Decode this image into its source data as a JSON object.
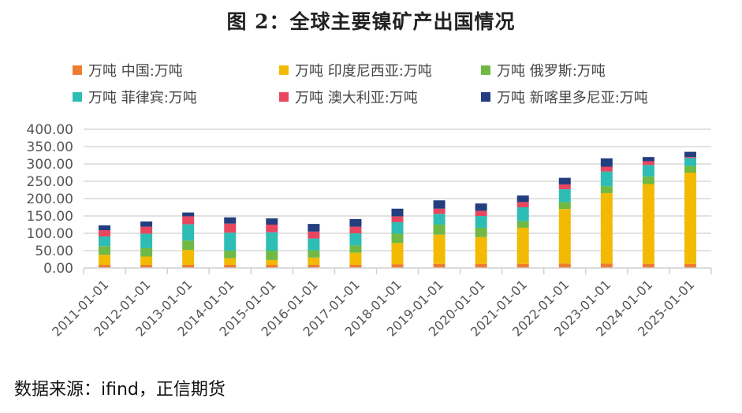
{
  "title": "图 2：全球主要镍矿产出国情况",
  "source": "数据来源：ifind，正信期货",
  "chart_data": {
    "type": "bar",
    "stacked": true,
    "title": "图 2：全球主要镍矿产出国情况",
    "xlabel": "",
    "ylabel": "",
    "ylim": [
      0,
      400
    ],
    "yticks": [
      0,
      50,
      100,
      150,
      200,
      250,
      300,
      350,
      400
    ],
    "ytick_labels": [
      "0.00",
      "50.00",
      "100.00",
      "150.00",
      "200.00",
      "250.00",
      "300.00",
      "350.00",
      "400.00"
    ],
    "grid": true,
    "legend_position": "top",
    "categories": [
      "2011-01-01",
      "2012-01-01",
      "2013-01-01",
      "2014-01-01",
      "2015-01-01",
      "2016-01-01",
      "2017-01-01",
      "2018-01-01",
      "2019-01-01",
      "2020-01-01",
      "2021-01-01",
      "2022-01-01",
      "2023-01-01",
      "2024-01-01",
      "2025-01-01"
    ],
    "series": [
      {
        "name": "万吨 中国:万吨",
        "color": "#ED7D31",
        "values": [
          9,
          9,
          9,
          9,
          9,
          9,
          9,
          11,
          12,
          12,
          12,
          13,
          13,
          12,
          12
        ]
      },
      {
        "name": "万吨 印度尼西亚:万吨",
        "color": "#F2BA02",
        "values": [
          29,
          24,
          43,
          19,
          14,
          21,
          35,
          61,
          84,
          77,
          104,
          157,
          203,
          230,
          263
        ]
      },
      {
        "name": "万吨 俄罗斯:万吨",
        "color": "#70B944",
        "values": [
          25,
          24,
          27,
          22,
          27,
          21,
          21,
          27,
          29,
          27,
          19,
          20,
          20,
          22,
          19
        ]
      },
      {
        "name": "万吨 菲律宾:万吨",
        "color": "#2EBDB5",
        "values": [
          28,
          42,
          47,
          52,
          53,
          34,
          35,
          33,
          31,
          34,
          40,
          37,
          42,
          33,
          23
        ]
      },
      {
        "name": "万吨 澳大利亚:万吨",
        "color": "#E8475F",
        "values": [
          18,
          20,
          23,
          26,
          22,
          20,
          19,
          17,
          15,
          15,
          15,
          14,
          14,
          11,
          3
        ]
      },
      {
        "name": "万吨 新喀里多尼亚:万吨",
        "color": "#233E7F",
        "values": [
          14,
          15,
          11,
          18,
          18,
          22,
          22,
          22,
          24,
          21,
          19,
          19,
          24,
          12,
          15
        ]
      }
    ]
  }
}
